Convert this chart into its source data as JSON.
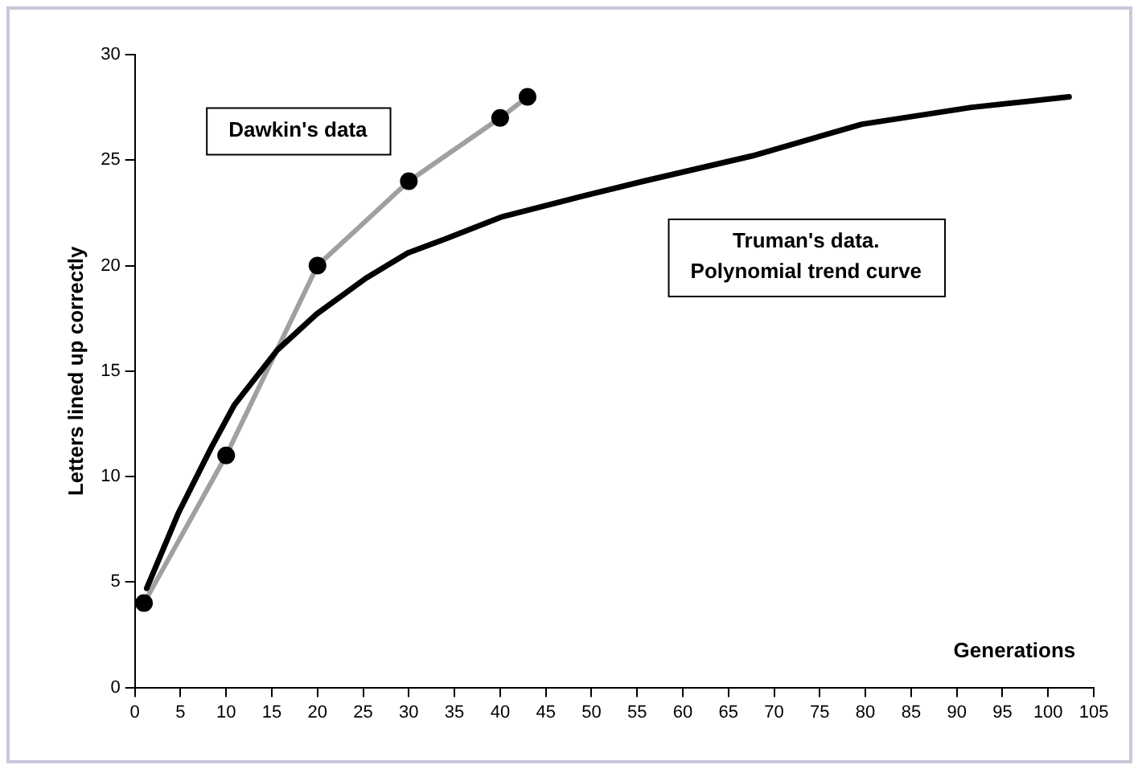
{
  "chart_data": {
    "type": "line",
    "xlabel": "Generations",
    "ylabel": "Letters lined up correctly",
    "xlim": [
      0,
      105
    ],
    "xticks": [
      0,
      5,
      10,
      15,
      20,
      25,
      30,
      35,
      40,
      45,
      50,
      55,
      60,
      65,
      70,
      75,
      80,
      85,
      90,
      95,
      100,
      105
    ],
    "ylim": [
      0,
      30
    ],
    "yticks": [
      0,
      5,
      10,
      15,
      20,
      25,
      30
    ],
    "grid": false,
    "legend": false,
    "series": [
      {
        "name": "Truman's data.\nPolynomial trend curve",
        "color": "#000000",
        "marker": "none",
        "x": [
          1.3,
          4.8,
          8.4,
          10.9,
          15.6,
          19.9,
          25.3,
          29.9,
          34.2,
          40.1,
          43.7,
          49.1,
          55.7,
          67.6,
          79.6,
          91.6,
          102.3
        ],
        "values": [
          4.7,
          8.3,
          11.4,
          13.4,
          16.0,
          17.7,
          19.4,
          20.6,
          21.3,
          22.3,
          22.7,
          23.3,
          24.0,
          25.2,
          26.7,
          27.5,
          28.0
        ]
      },
      {
        "name": "Dawkin's data",
        "color": "#a0a0a0",
        "marker": "none",
        "x": [
          1,
          10,
          20,
          30,
          40,
          43
        ],
        "values": [
          4,
          11,
          20,
          24,
          27,
          28
        ]
      },
      {
        "type": "scatter",
        "color": "#000000",
        "marker": "circle",
        "x": [
          1,
          10,
          20,
          30,
          40,
          43
        ],
        "values": [
          4,
          11,
          20,
          24,
          27,
          28
        ]
      }
    ]
  }
}
